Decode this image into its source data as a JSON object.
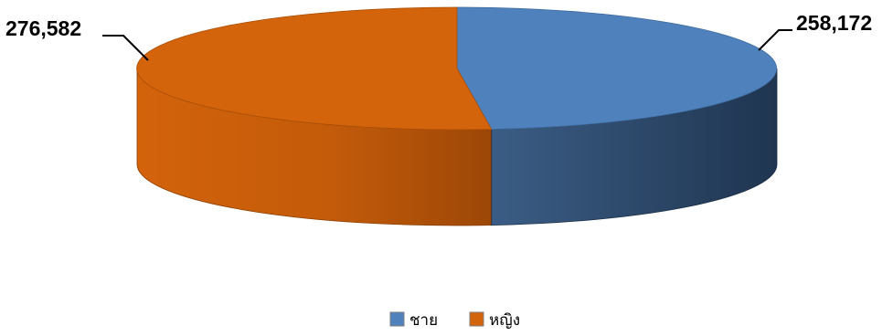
{
  "chart_data": {
    "type": "pie",
    "variant": "3d",
    "title": "",
    "legend_position": "bottom",
    "series": [
      {
        "name": "ชาย",
        "value": 258172,
        "label": "258,172",
        "color": "#4f81bd"
      },
      {
        "name": "หญิง",
        "value": 276582,
        "label": "276,582",
        "color": "#d4640c"
      }
    ]
  }
}
